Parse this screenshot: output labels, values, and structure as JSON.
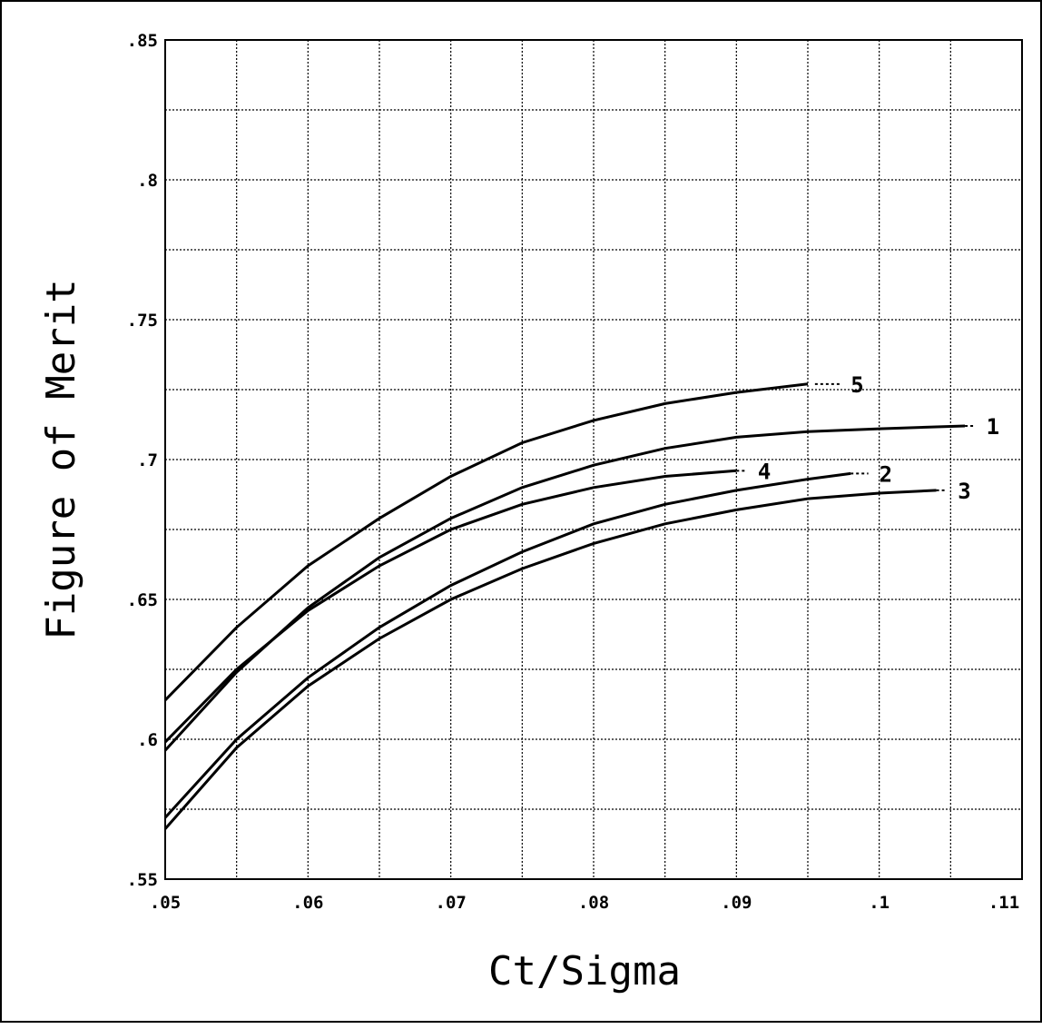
{
  "chart_data": {
    "type": "line",
    "xlabel": "Ct/Sigma",
    "ylabel": "Figure of Merit",
    "xlim": [
      0.05,
      0.11
    ],
    "ylim": [
      0.55,
      0.85
    ],
    "x_ticks": [
      {
        "value": 0.05,
        "label": ".05"
      },
      {
        "value": 0.06,
        "label": ".06"
      },
      {
        "value": 0.07,
        "label": ".07"
      },
      {
        "value": 0.08,
        "label": ".08"
      },
      {
        "value": 0.09,
        "label": ".09"
      },
      {
        "value": 0.1,
        "label": ".1"
      },
      {
        "value": 0.11,
        "label": ".11"
      }
    ],
    "y_ticks": [
      {
        "value": 0.55,
        "label": ".55"
      },
      {
        "value": 0.6,
        "label": ".6"
      },
      {
        "value": 0.65,
        "label": ".65"
      },
      {
        "value": 0.7,
        "label": ".7"
      },
      {
        "value": 0.75,
        "label": ".75"
      },
      {
        "value": 0.8,
        "label": ".8"
      },
      {
        "value": 0.85,
        "label": ".85"
      }
    ],
    "grid": true,
    "minor_grid_x": 0.005,
    "minor_grid_y": 0.025,
    "series": [
      {
        "name": "1",
        "x": [
          0.05,
          0.055,
          0.06,
          0.065,
          0.07,
          0.075,
          0.08,
          0.085,
          0.09,
          0.095,
          0.1,
          0.106
        ],
        "y": [
          0.596,
          0.624,
          0.647,
          0.665,
          0.679,
          0.69,
          0.698,
          0.704,
          0.708,
          0.71,
          0.711,
          0.712
        ]
      },
      {
        "name": "2",
        "x": [
          0.05,
          0.055,
          0.06,
          0.065,
          0.07,
          0.075,
          0.08,
          0.085,
          0.09,
          0.095,
          0.098
        ],
        "y": [
          0.572,
          0.6,
          0.622,
          0.64,
          0.655,
          0.667,
          0.677,
          0.684,
          0.689,
          0.693,
          0.695
        ]
      },
      {
        "name": "3",
        "x": [
          0.05,
          0.055,
          0.06,
          0.065,
          0.07,
          0.075,
          0.08,
          0.085,
          0.09,
          0.095,
          0.1,
          0.104
        ],
        "y": [
          0.568,
          0.597,
          0.619,
          0.636,
          0.65,
          0.661,
          0.67,
          0.677,
          0.682,
          0.686,
          0.688,
          0.689
        ]
      },
      {
        "name": "4",
        "x": [
          0.05,
          0.055,
          0.06,
          0.065,
          0.07,
          0.075,
          0.08,
          0.085,
          0.09
        ],
        "y": [
          0.599,
          0.625,
          0.646,
          0.662,
          0.675,
          0.684,
          0.69,
          0.694,
          0.696
        ]
      },
      {
        "name": "5",
        "x": [
          0.05,
          0.055,
          0.06,
          0.065,
          0.07,
          0.075,
          0.08,
          0.085,
          0.09,
          0.095
        ],
        "y": [
          0.614,
          0.64,
          0.662,
          0.679,
          0.694,
          0.706,
          0.714,
          0.72,
          0.724,
          0.727
        ]
      }
    ],
    "series_labels": [
      {
        "text": "5",
        "x": 0.0955,
        "y": 0.727,
        "label_x": 0.098,
        "label_y": 0.727
      },
      {
        "text": "1",
        "x": 0.106,
        "y": 0.712,
        "label_x": 0.1075,
        "label_y": 0.712
      },
      {
        "text": "4",
        "x": 0.09,
        "y": 0.696,
        "label_x": 0.0915,
        "label_y": 0.696
      },
      {
        "text": "2",
        "x": 0.098,
        "y": 0.695,
        "label_x": 0.1,
        "label_y": 0.695
      },
      {
        "text": "3",
        "x": 0.104,
        "y": 0.689,
        "label_x": 0.1055,
        "label_y": 0.689
      }
    ]
  }
}
